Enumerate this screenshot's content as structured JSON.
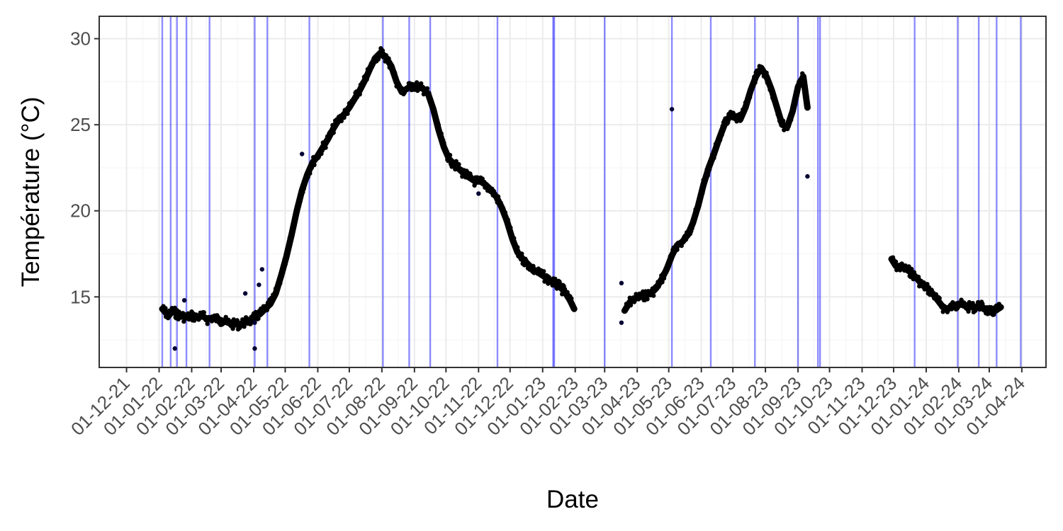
{
  "chart_data": {
    "type": "scatter",
    "title": "",
    "xlabel": "Date",
    "ylabel": "Température (°C)",
    "x_range": [
      "2021-11-05",
      "2024-04-24"
    ],
    "y_range": [
      10.9,
      31.3
    ],
    "grid": true,
    "colors": {
      "points": "#000000",
      "vlines": "#0000ff",
      "panel_border": "#333333",
      "grid_major": "#ebebeb",
      "grid_minor": "#f5f5f5"
    },
    "y_ticks": [
      15,
      20,
      25,
      30
    ],
    "y_tick_labels": [
      "15",
      "20",
      "25",
      "30"
    ],
    "x_ticks": [
      "2021-12-01",
      "2022-01-01",
      "2022-02-01",
      "2022-03-01",
      "2022-04-01",
      "2022-05-01",
      "2022-06-01",
      "2022-07-01",
      "2022-08-01",
      "2022-09-01",
      "2022-10-01",
      "2022-11-01",
      "2022-12-01",
      "2023-01-01",
      "2023-02-01",
      "2023-03-01",
      "2023-04-01",
      "2023-05-01",
      "2023-06-01",
      "2023-07-01",
      "2023-08-01",
      "2023-09-01",
      "2023-10-01",
      "2023-11-01",
      "2023-12-01",
      "2024-01-01",
      "2024-02-01",
      "2024-03-01",
      "2024-04-01"
    ],
    "x_tick_labels": [
      "01-12-21",
      "01-01-22",
      "01-02-22",
      "01-03-22",
      "01-04-22",
      "01-05-22",
      "01-06-22",
      "01-07-22",
      "01-08-22",
      "01-09-22",
      "01-10-22",
      "01-11-22",
      "01-12-22",
      "01-01-23",
      "01-02-23",
      "01-03-23",
      "01-04-23",
      "01-05-23",
      "01-06-23",
      "01-07-23",
      "01-08-23",
      "01-09-23",
      "01-10-23",
      "01-11-23",
      "01-12-23",
      "01-01-24",
      "01-02-24",
      "01-03-24",
      "01-04-24"
    ],
    "series": [
      {
        "points": [
          [
            "2022-01-04",
            14.3
          ],
          [
            "2022-01-07",
            14.1
          ],
          [
            "2022-01-10",
            13.9
          ],
          [
            "2022-01-14",
            14.2
          ],
          [
            "2022-01-18",
            14.0
          ],
          [
            "2022-01-22",
            13.9
          ],
          [
            "2022-01-27",
            13.8
          ],
          [
            "2022-02-01",
            13.9
          ],
          [
            "2022-02-06",
            13.8
          ],
          [
            "2022-02-11",
            13.9
          ],
          [
            "2022-02-16",
            13.7
          ],
          [
            "2022-02-21",
            13.8
          ],
          [
            "2022-02-26",
            13.7
          ],
          [
            "2022-03-03",
            13.6
          ],
          [
            "2022-03-08",
            13.5
          ],
          [
            "2022-03-13",
            13.4
          ],
          [
            "2022-03-18",
            13.4
          ],
          [
            "2022-03-23",
            13.5
          ],
          [
            "2022-03-28",
            13.6
          ],
          [
            "2022-04-02",
            13.8
          ],
          [
            "2022-04-07",
            14.0
          ],
          [
            "2022-04-12",
            14.3
          ],
          [
            "2022-04-17",
            14.6
          ],
          [
            "2022-04-22",
            15.2
          ],
          [
            "2022-04-27",
            16.2
          ],
          [
            "2022-05-02",
            17.3
          ],
          [
            "2022-05-07",
            18.6
          ],
          [
            "2022-05-12",
            20.0
          ],
          [
            "2022-05-17",
            21.2
          ],
          [
            "2022-05-22",
            22.1
          ],
          [
            "2022-05-27",
            22.8
          ],
          [
            "2022-06-01",
            23.2
          ],
          [
            "2022-06-06",
            23.7
          ],
          [
            "2022-06-11",
            24.2
          ],
          [
            "2022-06-16",
            24.8
          ],
          [
            "2022-06-21",
            25.3
          ],
          [
            "2022-06-26",
            25.6
          ],
          [
            "2022-07-01",
            26.0
          ],
          [
            "2022-07-06",
            26.5
          ],
          [
            "2022-07-11",
            27.0
          ],
          [
            "2022-07-16",
            27.6
          ],
          [
            "2022-07-21",
            28.3
          ],
          [
            "2022-07-26",
            28.9
          ],
          [
            "2022-07-31",
            29.2
          ],
          [
            "2022-08-05",
            28.9
          ],
          [
            "2022-08-10",
            28.4
          ],
          [
            "2022-08-15",
            27.5
          ],
          [
            "2022-08-20",
            26.9
          ],
          [
            "2022-08-25",
            27.1
          ],
          [
            "2022-08-30",
            27.3
          ],
          [
            "2022-09-04",
            27.2
          ],
          [
            "2022-09-09",
            27.1
          ],
          [
            "2022-09-14",
            26.8
          ],
          [
            "2022-09-19",
            25.9
          ],
          [
            "2022-09-24",
            24.7
          ],
          [
            "2022-09-29",
            23.7
          ],
          [
            "2022-10-04",
            23.0
          ],
          [
            "2022-10-09",
            22.7
          ],
          [
            "2022-10-14",
            22.4
          ],
          [
            "2022-10-19",
            22.1
          ],
          [
            "2022-10-24",
            21.9
          ],
          [
            "2022-10-29",
            21.7
          ],
          [
            "2022-11-03",
            21.7
          ],
          [
            "2022-11-08",
            21.5
          ],
          [
            "2022-11-13",
            21.2
          ],
          [
            "2022-11-18",
            20.8
          ],
          [
            "2022-11-23",
            20.2
          ],
          [
            "2022-11-28",
            19.4
          ],
          [
            "2022-12-03",
            18.4
          ],
          [
            "2022-12-08",
            17.6
          ],
          [
            "2022-12-13",
            17.2
          ],
          [
            "2022-12-18",
            16.9
          ],
          [
            "2022-12-23",
            16.6
          ],
          [
            "2022-12-28",
            16.4
          ],
          [
            "2023-01-02",
            16.2
          ],
          [
            "2023-01-07",
            16.0
          ],
          [
            "2023-01-12",
            15.8
          ],
          [
            "2023-01-17",
            15.6
          ],
          [
            "2023-01-22",
            15.3
          ],
          [
            "2023-01-27",
            14.8
          ],
          [
            "2023-01-31",
            14.3
          ]
        ]
      },
      {
        "points": [
          [
            "2023-03-20",
            14.2
          ],
          [
            "2023-03-25",
            14.7
          ],
          [
            "2023-03-30",
            14.9
          ],
          [
            "2023-04-04",
            15.0
          ],
          [
            "2023-04-09",
            15.1
          ],
          [
            "2023-04-14",
            15.2
          ],
          [
            "2023-04-19",
            15.5
          ],
          [
            "2023-04-24",
            16.0
          ],
          [
            "2023-04-29",
            16.6
          ],
          [
            "2023-05-04",
            17.4
          ],
          [
            "2023-05-09",
            18.0
          ],
          [
            "2023-05-14",
            18.2
          ],
          [
            "2023-05-19",
            18.6
          ],
          [
            "2023-05-24",
            19.3
          ],
          [
            "2023-05-29",
            20.3
          ],
          [
            "2023-06-03",
            21.5
          ],
          [
            "2023-06-08",
            22.5
          ],
          [
            "2023-06-13",
            23.3
          ],
          [
            "2023-06-18",
            24.2
          ],
          [
            "2023-06-23",
            25.0
          ],
          [
            "2023-06-28",
            25.5
          ],
          [
            "2023-07-03",
            25.4
          ],
          [
            "2023-07-08",
            25.3
          ],
          [
            "2023-07-13",
            26.0
          ],
          [
            "2023-07-18",
            27.0
          ],
          [
            "2023-07-23",
            27.8
          ],
          [
            "2023-07-28",
            28.3
          ],
          [
            "2023-08-02",
            27.8
          ],
          [
            "2023-08-07",
            27.0
          ],
          [
            "2023-08-12",
            26.0
          ],
          [
            "2023-08-17",
            25.0
          ],
          [
            "2023-08-22",
            24.9
          ],
          [
            "2023-08-27",
            25.8
          ],
          [
            "2023-09-01",
            27.2
          ],
          [
            "2023-09-06",
            27.8
          ],
          [
            "2023-09-10",
            26.0
          ]
        ]
      },
      {
        "points": [
          [
            "2023-11-29",
            17.2
          ],
          [
            "2023-12-03",
            16.8
          ],
          [
            "2023-12-08",
            16.7
          ],
          [
            "2023-12-13",
            16.6
          ],
          [
            "2023-12-18",
            16.4
          ],
          [
            "2023-12-23",
            16.1
          ],
          [
            "2023-12-28",
            15.7
          ],
          [
            "2024-01-02",
            15.5
          ],
          [
            "2024-01-07",
            15.2
          ],
          [
            "2024-01-12",
            14.8
          ],
          [
            "2024-01-17",
            14.4
          ],
          [
            "2024-01-22",
            14.3
          ],
          [
            "2024-01-27",
            14.5
          ],
          [
            "2024-02-01",
            14.6
          ],
          [
            "2024-02-06",
            14.5
          ],
          [
            "2024-02-11",
            14.4
          ],
          [
            "2024-02-16",
            14.4
          ],
          [
            "2024-02-21",
            14.5
          ],
          [
            "2024-02-26",
            14.3
          ],
          [
            "2024-03-02",
            14.1
          ],
          [
            "2024-03-07",
            14.2
          ],
          [
            "2024-03-12",
            14.4
          ]
        ]
      }
    ],
    "outliers": [
      [
        "2022-01-16",
        12.0
      ],
      [
        "2022-01-25",
        14.8
      ],
      [
        "2022-03-24",
        15.2
      ],
      [
        "2022-04-02",
        12.0
      ],
      [
        "2022-04-02",
        13.5
      ],
      [
        "2022-04-06",
        15.7
      ],
      [
        "2022-04-09",
        16.6
      ],
      [
        "2022-05-17",
        23.3
      ],
      [
        "2022-11-01",
        21.0
      ],
      [
        "2023-03-17",
        13.5
      ],
      [
        "2023-03-17",
        15.8
      ],
      [
        "2023-05-04",
        25.9
      ],
      [
        "2023-09-10",
        22.0
      ]
    ],
    "vlines": [
      "2022-01-04",
      "2022-01-12",
      "2022-01-18",
      "2022-01-27",
      "2022-02-18",
      "2022-04-02",
      "2022-04-14",
      "2022-05-24",
      "2022-08-02",
      "2022-08-27",
      "2022-09-16",
      "2022-11-19",
      "2023-01-11",
      "2023-01-12",
      "2023-03-01",
      "2023-05-04",
      "2023-06-10",
      "2023-07-22",
      "2023-09-01",
      "2023-09-20",
      "2023-09-22",
      "2023-12-21",
      "2024-01-31",
      "2024-02-20",
      "2024-03-08",
      "2024-03-31"
    ]
  }
}
